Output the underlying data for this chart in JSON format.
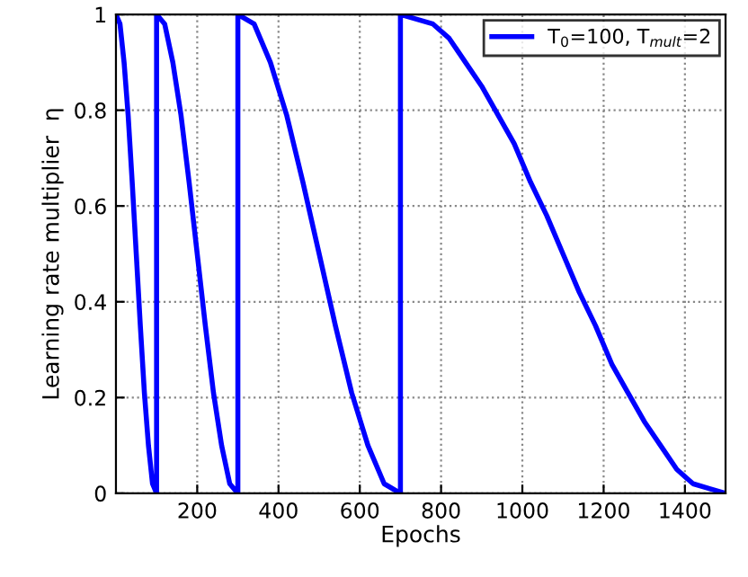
{
  "chart_data": {
    "type": "line",
    "xlabel": "Epochs",
    "ylabel": "Learning rate multiplier  η",
    "series": [
      {
        "name": "T$_{0}$=100, T$_{mult}$=2",
        "color": "#0000ff",
        "x": [
          0,
          10,
          20,
          30,
          40,
          50,
          60,
          70,
          80,
          90,
          100,
          100,
          120,
          140,
          160,
          180,
          200,
          220,
          240,
          260,
          280,
          300,
          300,
          340,
          380,
          420,
          460,
          500,
          540,
          580,
          620,
          660,
          700,
          700,
          740,
          780,
          820,
          860,
          900,
          940,
          980,
          1020,
          1060,
          1100,
          1140,
          1180,
          1220,
          1260,
          1300,
          1340,
          1380,
          1420,
          1460,
          1500
        ],
        "values": [
          1,
          0.98,
          0.9,
          0.79,
          0.65,
          0.5,
          0.35,
          0.21,
          0.1,
          0.02,
          0,
          1,
          0.98,
          0.9,
          0.79,
          0.65,
          0.5,
          0.35,
          0.21,
          0.1,
          0.02,
          0,
          1,
          0.98,
          0.9,
          0.79,
          0.65,
          0.5,
          0.35,
          0.21,
          0.1,
          0.02,
          0,
          1,
          0.99,
          0.98,
          0.95,
          0.9,
          0.85,
          0.79,
          0.73,
          0.65,
          0.58,
          0.5,
          0.42,
          0.35,
          0.27,
          0.21,
          0.15,
          0.1,
          0.05,
          0.02,
          0.01,
          0
        ]
      }
    ],
    "xlim": [
      0,
      1500
    ],
    "xticks": [
      200,
      400,
      600,
      800,
      1000,
      1200,
      1400
    ],
    "ylim": [
      0,
      1
    ],
    "yticks": [
      0,
      0.2,
      0.4,
      0.6,
      0.8,
      1
    ],
    "grid": true,
    "legend": "top right",
    "marker": "none",
    "line_style": "solid"
  }
}
